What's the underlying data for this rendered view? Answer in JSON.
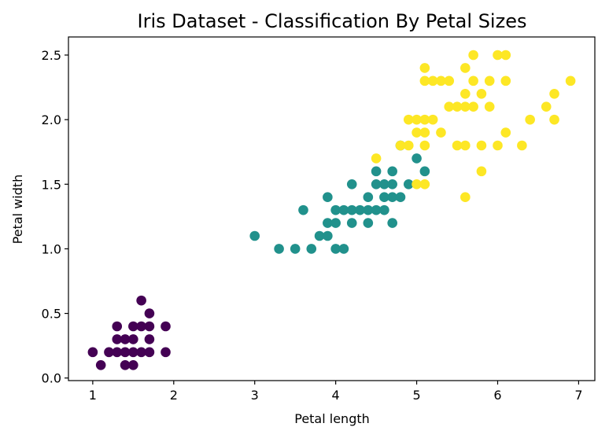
{
  "chart_data": {
    "type": "scatter",
    "title": "Iris Dataset - Classification By Petal Sizes",
    "xlabel": "Petal length",
    "ylabel": "Petal width",
    "xlim": [
      0.7,
      7.2
    ],
    "ylim": [
      -0.02,
      2.64
    ],
    "xticks": [
      1,
      2,
      3,
      4,
      5,
      6,
      7
    ],
    "yticks": [
      "0.0",
      "0.5",
      "1.0",
      "1.5",
      "2.0",
      "2.5"
    ],
    "grid": false,
    "legend": false,
    "colors": [
      "#440154",
      "#21918c",
      "#fde725"
    ],
    "points": [
      [
        1.0,
        0.2,
        0
      ],
      [
        1.1,
        0.1,
        0
      ],
      [
        1.2,
        0.2,
        0
      ],
      [
        1.3,
        0.2,
        0
      ],
      [
        1.3,
        0.3,
        0
      ],
      [
        1.3,
        0.4,
        0
      ],
      [
        1.4,
        0.1,
        0
      ],
      [
        1.4,
        0.2,
        0
      ],
      [
        1.4,
        0.3,
        0
      ],
      [
        1.5,
        0.1,
        0
      ],
      [
        1.5,
        0.2,
        0
      ],
      [
        1.5,
        0.3,
        0
      ],
      [
        1.5,
        0.4,
        0
      ],
      [
        1.6,
        0.2,
        0
      ],
      [
        1.6,
        0.4,
        0
      ],
      [
        1.6,
        0.6,
        0
      ],
      [
        1.7,
        0.2,
        0
      ],
      [
        1.7,
        0.3,
        0
      ],
      [
        1.7,
        0.4,
        0
      ],
      [
        1.7,
        0.5,
        0
      ],
      [
        1.9,
        0.2,
        0
      ],
      [
        1.9,
        0.4,
        0
      ],
      [
        3.0,
        1.1,
        1
      ],
      [
        3.3,
        1.0,
        1
      ],
      [
        3.5,
        1.0,
        1
      ],
      [
        3.6,
        1.3,
        1
      ],
      [
        3.7,
        1.0,
        1
      ],
      [
        3.8,
        1.1,
        1
      ],
      [
        3.9,
        1.1,
        1
      ],
      [
        3.9,
        1.2,
        1
      ],
      [
        3.9,
        1.4,
        1
      ],
      [
        4.0,
        1.0,
        1
      ],
      [
        4.0,
        1.2,
        1
      ],
      [
        4.0,
        1.3,
        1
      ],
      [
        4.1,
        1.0,
        1
      ],
      [
        4.1,
        1.3,
        1
      ],
      [
        4.2,
        1.2,
        1
      ],
      [
        4.2,
        1.3,
        1
      ],
      [
        4.2,
        1.5,
        1
      ],
      [
        4.3,
        1.3,
        1
      ],
      [
        4.4,
        1.2,
        1
      ],
      [
        4.4,
        1.3,
        1
      ],
      [
        4.4,
        1.4,
        1
      ],
      [
        4.5,
        1.3,
        1
      ],
      [
        4.5,
        1.5,
        1
      ],
      [
        4.5,
        1.6,
        1
      ],
      [
        4.6,
        1.3,
        1
      ],
      [
        4.6,
        1.4,
        1
      ],
      [
        4.6,
        1.5,
        1
      ],
      [
        4.7,
        1.2,
        1
      ],
      [
        4.7,
        1.4,
        1
      ],
      [
        4.7,
        1.5,
        1
      ],
      [
        4.7,
        1.6,
        1
      ],
      [
        4.8,
        1.4,
        1
      ],
      [
        4.8,
        1.8,
        1
      ],
      [
        4.9,
        1.5,
        1
      ],
      [
        5.0,
        1.7,
        1
      ],
      [
        5.1,
        1.6,
        1
      ],
      [
        4.5,
        1.7,
        2
      ],
      [
        4.8,
        1.8,
        2
      ],
      [
        4.9,
        1.8,
        2
      ],
      [
        4.9,
        2.0,
        2
      ],
      [
        5.0,
        1.5,
        2
      ],
      [
        5.0,
        1.9,
        2
      ],
      [
        5.0,
        2.0,
        2
      ],
      [
        5.1,
        1.5,
        2
      ],
      [
        5.1,
        1.8,
        2
      ],
      [
        5.1,
        1.9,
        2
      ],
      [
        5.1,
        2.0,
        2
      ],
      [
        5.1,
        2.3,
        2
      ],
      [
        5.1,
        2.4,
        2
      ],
      [
        5.2,
        2.0,
        2
      ],
      [
        5.2,
        2.3,
        2
      ],
      [
        5.3,
        1.9,
        2
      ],
      [
        5.3,
        2.3,
        2
      ],
      [
        5.4,
        2.1,
        2
      ],
      [
        5.4,
        2.3,
        2
      ],
      [
        5.5,
        1.8,
        2
      ],
      [
        5.5,
        2.1,
        2
      ],
      [
        5.6,
        1.4,
        2
      ],
      [
        5.6,
        1.8,
        2
      ],
      [
        5.6,
        2.1,
        2
      ],
      [
        5.6,
        2.2,
        2
      ],
      [
        5.6,
        2.4,
        2
      ],
      [
        5.7,
        2.1,
        2
      ],
      [
        5.7,
        2.3,
        2
      ],
      [
        5.7,
        2.5,
        2
      ],
      [
        5.8,
        1.6,
        2
      ],
      [
        5.8,
        1.8,
        2
      ],
      [
        5.8,
        2.2,
        2
      ],
      [
        5.9,
        2.1,
        2
      ],
      [
        5.9,
        2.3,
        2
      ],
      [
        6.0,
        1.8,
        2
      ],
      [
        6.0,
        2.5,
        2
      ],
      [
        6.1,
        1.9,
        2
      ],
      [
        6.1,
        2.3,
        2
      ],
      [
        6.1,
        2.5,
        2
      ],
      [
        6.3,
        1.8,
        2
      ],
      [
        6.4,
        2.0,
        2
      ],
      [
        6.6,
        2.1,
        2
      ],
      [
        6.7,
        2.0,
        2
      ],
      [
        6.7,
        2.2,
        2
      ],
      [
        6.9,
        2.3,
        2
      ]
    ]
  }
}
